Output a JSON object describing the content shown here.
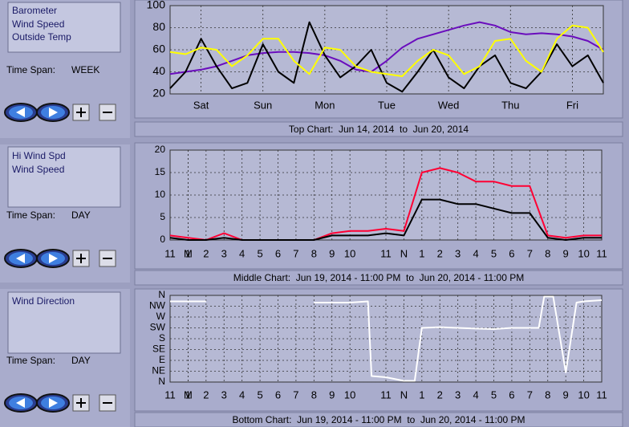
{
  "chart_data": [
    {
      "type": "line",
      "title": "Top Chart:  Jun 14, 2014  to  Jun 20, 2014",
      "x": [
        0,
        0.25,
        0.5,
        0.75,
        1,
        1.25,
        1.5,
        1.75,
        2,
        2.25,
        2.5,
        2.75,
        3,
        3.25,
        3.5,
        3.75,
        4,
        4.25,
        4.5,
        4.75,
        5,
        5.25,
        5.5,
        5.75,
        6,
        6.25,
        6.5,
        6.75,
        7
      ],
      "xlim": [
        0,
        7
      ],
      "xticks": [
        {
          "value": 0.5,
          "label": "Sat"
        },
        {
          "value": 1.5,
          "label": "Sun"
        },
        {
          "value": 2.5,
          "label": "Mon"
        },
        {
          "value": 3.5,
          "label": "Tue"
        },
        {
          "value": 4.5,
          "label": "Wed"
        },
        {
          "value": 5.5,
          "label": "Thu"
        },
        {
          "value": 6.5,
          "label": "Fri"
        }
      ],
      "ylim": [
        20,
        100
      ],
      "yticks": [
        20,
        40,
        60,
        80,
        100
      ],
      "grid": true,
      "series": [
        {
          "name": "Barometer",
          "color": "#6a0dbd",
          "values": [
            38,
            40,
            42,
            45,
            50,
            55,
            57,
            58,
            58,
            57,
            55,
            50,
            42,
            40,
            50,
            62,
            70,
            74,
            78,
            82,
            85,
            82,
            76,
            74,
            75,
            74,
            72,
            68,
            60
          ]
        },
        {
          "name": "Wind Speed",
          "color": "#000000",
          "values": [
            25,
            40,
            70,
            45,
            25,
            30,
            65,
            40,
            30,
            85,
            55,
            35,
            45,
            60,
            30,
            22,
            40,
            60,
            35,
            25,
            45,
            55,
            30,
            25,
            40,
            65,
            45,
            55,
            30
          ]
        },
        {
          "name": "Outside Temp",
          "color": "#ffff00",
          "values": [
            58,
            56,
            62,
            60,
            45,
            55,
            70,
            70,
            50,
            38,
            62,
            60,
            45,
            40,
            38,
            36,
            50,
            60,
            55,
            38,
            45,
            68,
            70,
            50,
            40,
            70,
            82,
            80,
            58
          ]
        }
      ]
    },
    {
      "type": "line",
      "title": "Middle Chart:  Jun 19, 2014 - 11:00 PM  to  Jun 20, 2014 - 11:00 PM",
      "x": [
        0,
        1,
        2,
        3,
        4,
        5,
        6,
        7,
        8,
        9,
        10,
        11,
        12,
        13,
        14,
        15,
        16,
        17,
        18,
        19,
        20,
        21,
        22,
        23,
        24
      ],
      "xlim": [
        0,
        24
      ],
      "xticks": [
        {
          "value": 0,
          "label": "11"
        },
        {
          "value": 1,
          "label": "M"
        },
        1,
        2,
        3,
        4,
        5,
        6,
        7,
        8,
        9,
        10,
        {
          "value": 12,
          "label": "11"
        },
        {
          "value": 13,
          "label": "N"
        },
        {
          "value": 14,
          "label": "1"
        },
        {
          "value": 15,
          "label": "2"
        },
        {
          "value": 16,
          "label": "3"
        },
        {
          "value": 17,
          "label": "4"
        },
        {
          "value": 18,
          "label": "5"
        },
        {
          "value": 19,
          "label": "6"
        },
        {
          "value": 20,
          "label": "7"
        },
        {
          "value": 21,
          "label": "8"
        },
        {
          "value": 22,
          "label": "9"
        },
        {
          "value": 23,
          "label": "10"
        },
        {
          "value": 24,
          "label": "11"
        }
      ],
      "ylim": [
        0,
        20
      ],
      "yticks": [
        0,
        5,
        10,
        15,
        20
      ],
      "grid": true,
      "series": [
        {
          "name": "Hi Wind Spd",
          "color": "#ff0033",
          "values": [
            1,
            0.5,
            0,
            1.5,
            0,
            0,
            0,
            0,
            0,
            1.5,
            2,
            2,
            2.5,
            2,
            15,
            16,
            15,
            13,
            13,
            12,
            12,
            1,
            0.5,
            1,
            1
          ]
        },
        {
          "name": "Wind Speed",
          "color": "#000000",
          "values": [
            0.5,
            0,
            0,
            0.5,
            0,
            0,
            0,
            0,
            0,
            1,
            1,
            1,
            1.5,
            1,
            9,
            9,
            8,
            8,
            7,
            6,
            6,
            0.5,
            0,
            0.5,
            0.5
          ]
        }
      ]
    },
    {
      "type": "line",
      "title": "Bottom Chart:  Jun 19, 2014 - 11:00 PM  to  Jun 20, 2014 - 11:00 PM",
      "x": [
        0,
        1,
        2,
        5,
        8,
        9,
        10,
        11,
        11.2,
        12,
        13,
        13.6,
        14,
        15,
        16,
        17,
        18,
        19,
        20,
        20.5,
        20.8,
        21.3,
        22,
        22.6,
        23,
        24
      ],
      "xlim": [
        0,
        24
      ],
      "xticks": [
        {
          "value": 0,
          "label": "11"
        },
        {
          "value": 1,
          "label": "M"
        },
        1,
        2,
        3,
        4,
        5,
        6,
        7,
        8,
        9,
        10,
        {
          "value": 12,
          "label": "11"
        },
        {
          "value": 13,
          "label": "N"
        },
        {
          "value": 14,
          "label": "1"
        },
        {
          "value": 15,
          "label": "2"
        },
        {
          "value": 16,
          "label": "3"
        },
        {
          "value": 17,
          "label": "4"
        },
        {
          "value": 18,
          "label": "5"
        },
        {
          "value": 19,
          "label": "6"
        },
        {
          "value": 20,
          "label": "7"
        },
        {
          "value": 21,
          "label": "8"
        },
        {
          "value": 22,
          "label": "9"
        },
        {
          "value": 23,
          "label": "10"
        },
        {
          "value": 24,
          "label": "11"
        }
      ],
      "ylim": [
        0,
        360
      ],
      "yticks": [
        {
          "value": 0,
          "label": "N"
        },
        {
          "value": 45,
          "label": "NE"
        },
        {
          "value": 90,
          "label": "E"
        },
        {
          "value": 135,
          "label": "SE"
        },
        {
          "value": 180,
          "label": "S"
        },
        {
          "value": 225,
          "label": "SW"
        },
        {
          "value": 270,
          "label": "W"
        },
        {
          "value": 315,
          "label": "NW"
        },
        {
          "value": 360,
          "label": "N"
        }
      ],
      "grid": true,
      "series": [
        {
          "name": "Wind Direction",
          "color": "#ffffff",
          "values": [
            335,
            335,
            335,
            null,
            330,
            330,
            330,
            335,
            25,
            20,
            5,
            5,
            225,
            228,
            225,
            222,
            220,
            225,
            225,
            225,
            355,
            355,
            40,
            330,
            335,
            340
          ]
        }
      ]
    }
  ],
  "panels": [
    {
      "time_span_label": "Time Span:",
      "time_span": "WEEK"
    },
    {
      "time_span_label": "Time Span:",
      "time_span": "DAY"
    },
    {
      "time_span_label": "Time Span:",
      "time_span": "DAY"
    }
  ]
}
